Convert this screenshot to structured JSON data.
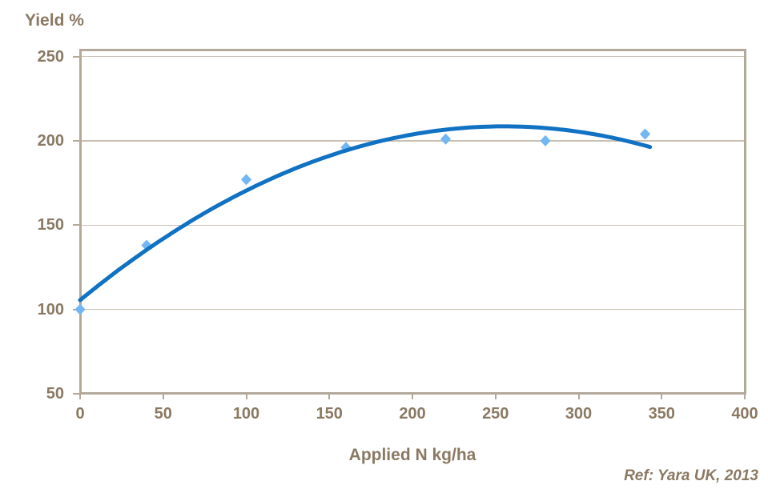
{
  "chart": {
    "y_axis_title": "Yield %",
    "x_axis_title": "Applied N kg/ha",
    "reference": "Ref: Yara UK, 2013"
  },
  "chart_data": {
    "type": "scatter",
    "title": "",
    "xlabel": "Applied N kg/ha",
    "ylabel": "Yield %",
    "xlim": [
      0,
      400
    ],
    "ylim": [
      50,
      250
    ],
    "x_ticks": [
      0,
      50,
      100,
      150,
      200,
      250,
      300,
      350,
      400
    ],
    "y_ticks": [
      50,
      100,
      150,
      200,
      250
    ],
    "grid": "horizontal-only",
    "legend": "none",
    "series": [
      {
        "name": "observed-yield-points",
        "type": "scatter",
        "marker": "diamond",
        "color": "#72b6f3",
        "points": [
          [
            0,
            100
          ],
          [
            40,
            138
          ],
          [
            100,
            177
          ],
          [
            160,
            196
          ],
          [
            220,
            201
          ],
          [
            280,
            200
          ],
          [
            340,
            204
          ]
        ]
      },
      {
        "name": "fitted-response-curve",
        "type": "quadratic-trendline",
        "color": "#1172c3",
        "equation": {
          "a": 105.5,
          "b": 0.808,
          "c": -0.001584
        },
        "x_range": [
          0,
          343
        ],
        "peak": [
          255,
          208.5
        ]
      }
    ],
    "annotation": "Ref: Yara UK, 2013",
    "colors": {
      "axis_line": "#b3a99b",
      "gridline": "#c9c0b3",
      "label_text": "#8a7963",
      "curve": "#1172c3",
      "marker": "#72b6f3"
    }
  }
}
